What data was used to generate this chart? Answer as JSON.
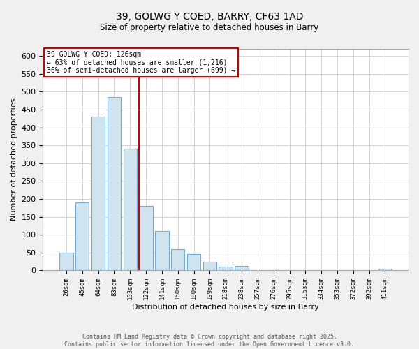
{
  "title": "39, GOLWG Y COED, BARRY, CF63 1AD",
  "subtitle": "Size of property relative to detached houses in Barry",
  "xlabel": "Distribution of detached houses by size in Barry",
  "ylabel": "Number of detached properties",
  "categories": [
    "26sqm",
    "45sqm",
    "64sqm",
    "83sqm",
    "103sqm",
    "122sqm",
    "141sqm",
    "160sqm",
    "180sqm",
    "199sqm",
    "218sqm",
    "238sqm",
    "257sqm",
    "276sqm",
    "295sqm",
    "315sqm",
    "334sqm",
    "353sqm",
    "372sqm",
    "392sqm",
    "411sqm"
  ],
  "values": [
    50,
    190,
    430,
    485,
    340,
    180,
    110,
    60,
    45,
    25,
    10,
    12,
    0,
    0,
    0,
    0,
    0,
    0,
    0,
    0,
    4
  ],
  "bar_color": "#d0e4f0",
  "bar_edge_color": "#6baed6",
  "marker_bin_index": 5,
  "vline_color": "#cc0000",
  "annotation_title": "39 GOLWG Y COED: 126sqm",
  "annotation_line1": "← 63% of detached houses are smaller (1,216)",
  "annotation_line2": "36% of semi-detached houses are larger (699) →",
  "annotation_box_facecolor": "#ffffff",
  "annotation_box_edgecolor": "#cc0000",
  "ylim": [
    0,
    620
  ],
  "yticks": [
    0,
    50,
    100,
    150,
    200,
    250,
    300,
    350,
    400,
    450,
    500,
    550,
    600
  ],
  "footnote1": "Contains HM Land Registry data © Crown copyright and database right 2025.",
  "footnote2": "Contains public sector information licensed under the Open Government Licence v3.0.",
  "fig_facecolor": "#f0f0f0",
  "plot_facecolor": "#ffffff",
  "grid_color": "#cccccc",
  "title_fontsize": 10,
  "subtitle_fontsize": 8.5,
  "xlabel_fontsize": 8,
  "ylabel_fontsize": 8,
  "xtick_fontsize": 6.5,
  "ytick_fontsize": 8,
  "annot_fontsize": 7,
  "footnote_fontsize": 6
}
